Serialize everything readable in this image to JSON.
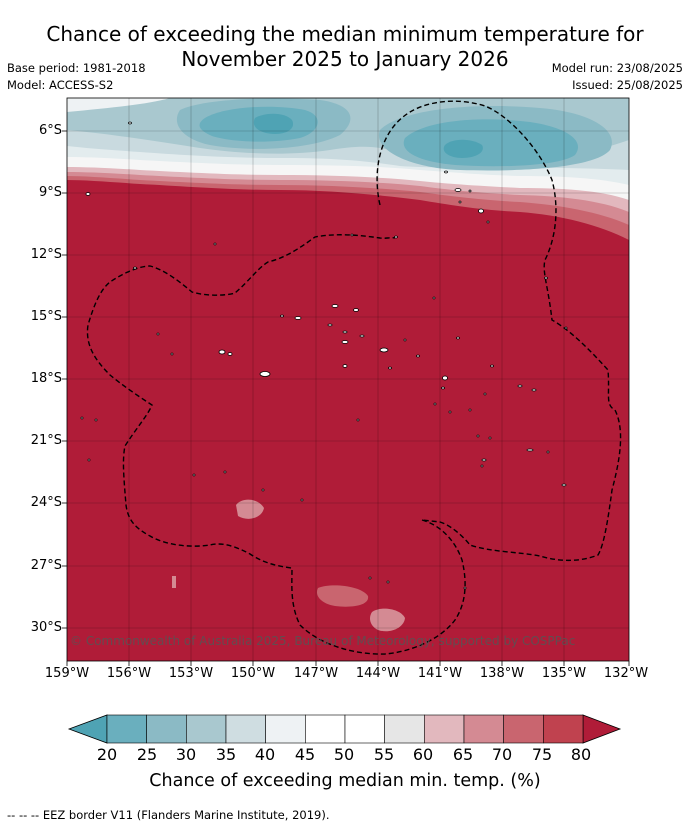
{
  "title": "Chance of exceeding the median minimum temperature for November 2025 to January 2026",
  "title_line1": "Chance of exceeding the median minimum temperature for",
  "title_line2": "November 2025 to January 2026",
  "meta": {
    "base_period": "Base period: 1981-2018",
    "model": "Model: ACCESS-S2",
    "model_run": "Model run: 23/08/2025",
    "issued": "Issued: 25/08/2025"
  },
  "copyright": "© Commonwealth of Australia 2025, Bureau of Meteorology, supported by COSPPac",
  "footnote": "--  --  -- EEZ border V11 (Flanders Marine Institute, 2019).",
  "lat_ticks": [
    "6°S",
    "9°S",
    "12°S",
    "15°S",
    "18°S",
    "21°S",
    "24°S",
    "27°S",
    "30°S"
  ],
  "lon_ticks": [
    "159°W",
    "156°W",
    "153°W",
    "150°W",
    "147°W",
    "144°W",
    "141°W",
    "138°W",
    "135°W",
    "132°W"
  ],
  "colorbar": {
    "label": "Chance of exceeding median min. temp. (%)",
    "ticks": [
      "20",
      "25",
      "30",
      "35",
      "40",
      "45",
      "50",
      "55",
      "60",
      "65",
      "70",
      "75",
      "80"
    ],
    "colors": [
      "#4fa3b4",
      "#6aafbe",
      "#8bbac5",
      "#a9c8cf",
      "#cfdde1",
      "#eef2f4",
      "#ffffff",
      "#ffffff",
      "#e6e6e6",
      "#e2b8be",
      "#d48a93",
      "#c9656f",
      "#c0424f",
      "#b01c38"
    ]
  },
  "map": {
    "dominant_color": "#b01c38",
    "region": "Southern Cook Islands / French Polynesia region"
  }
}
